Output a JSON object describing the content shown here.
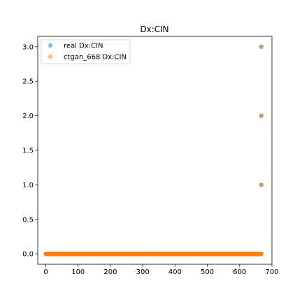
{
  "chart_data": {
    "type": "scatter",
    "title": "Dx:CIN",
    "xlabel": "",
    "ylabel": "",
    "xlim": [
      -25,
      700
    ],
    "ylim": [
      -0.15,
      3.15
    ],
    "xticks": [
      0,
      100,
      200,
      300,
      400,
      500,
      600,
      700
    ],
    "xtick_labels": [
      "0",
      "100",
      "200",
      "300",
      "400",
      "500",
      "600",
      "700"
    ],
    "yticks": [
      0.0,
      0.5,
      1.0,
      1.5,
      2.0,
      2.5,
      3.0
    ],
    "ytick_labels": [
      "0.0",
      "0.5",
      "1.0",
      "1.5",
      "2.0",
      "2.5",
      "3.0"
    ],
    "grid": false,
    "legend_position": "upper-left",
    "series": [
      {
        "name": "real Dx:CIN",
        "color": "#1f77b4",
        "n_points": 668,
        "x_start": 0,
        "x_end": 667,
        "baseline_value": 0,
        "nonzero_points": [
          {
            "x": 667,
            "y": 1.0
          },
          {
            "x": 667,
            "y": 2.0
          },
          {
            "x": 667,
            "y": 3.0
          }
        ]
      },
      {
        "name": "ctgan_668 Dx:CIN",
        "color": "#ff7f0e",
        "n_points": 668,
        "x_start": 0,
        "x_end": 667,
        "baseline_value": 0,
        "nonzero_points": []
      }
    ]
  }
}
